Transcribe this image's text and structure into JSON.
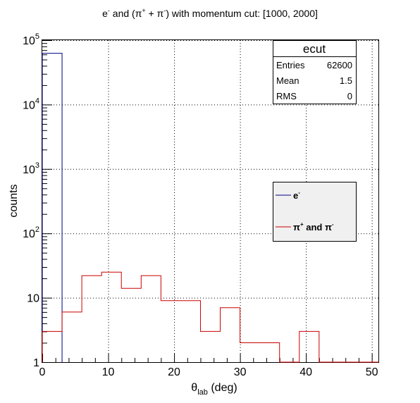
{
  "chart_data": {
    "type": "histogram",
    "title": {
      "base": "e",
      "sup1": "-",
      "mid1": " and (",
      "pi": "π",
      "sup2": "+",
      "mid2": " + ",
      "sup3": "-",
      "rest": ") with momentum cut: [1000, 2000]"
    },
    "xlabel": {
      "theta": "θ",
      "sub": "lab",
      "rest": " (deg)"
    },
    "ylabel": "counts",
    "x_range": [
      0,
      51
    ],
    "y_range": [
      1,
      100000
    ],
    "y_scale": "log",
    "grid": true,
    "x_ticks": [
      0,
      10,
      20,
      30,
      40,
      50
    ],
    "y_ticks": [
      {
        "value": 1,
        "base": "1",
        "exp": ""
      },
      {
        "value": 10,
        "base": "10",
        "exp": ""
      },
      {
        "value": 100,
        "base": "10",
        "exp": "2"
      },
      {
        "value": 1000,
        "base": "10",
        "exp": "3"
      },
      {
        "value": 10000,
        "base": "10",
        "exp": "4"
      },
      {
        "value": 100000,
        "base": "10",
        "exp": "5"
      }
    ],
    "bin_width": 3,
    "series": [
      {
        "name": "e-",
        "color": "#000080",
        "bins": [
          {
            "x": 0,
            "count": 62600
          }
        ]
      },
      {
        "name": "π+ and π-",
        "color": "#cc0000",
        "bins": [
          {
            "x": 0,
            "count": 3
          },
          {
            "x": 3,
            "count": 6
          },
          {
            "x": 6,
            "count": 22
          },
          {
            "x": 9,
            "count": 25
          },
          {
            "x": 12,
            "count": 14
          },
          {
            "x": 15,
            "count": 22
          },
          {
            "x": 18,
            "count": 9
          },
          {
            "x": 21,
            "count": 9
          },
          {
            "x": 24,
            "count": 3
          },
          {
            "x": 27,
            "count": 7
          },
          {
            "x": 30,
            "count": 2
          },
          {
            "x": 33,
            "count": 2
          },
          {
            "x": 36,
            "count": 1
          },
          {
            "x": 39,
            "count": 3
          },
          {
            "x": 42,
            "count": 1
          },
          {
            "x": 45,
            "count": 1
          },
          {
            "x": 48,
            "count": 1
          }
        ]
      }
    ],
    "legend": {
      "position": "right-middle",
      "entries": [
        {
          "base": "e",
          "sup": "-",
          "color": "#000080"
        },
        {
          "pi1": "π",
          "sup1": "+",
          "mid": " and ",
          "pi2": "π",
          "sup2": "-",
          "color": "#cc0000"
        }
      ]
    },
    "stats_box": {
      "position": "top-right",
      "title": "ecut",
      "rows": [
        {
          "label": "Entries",
          "value": "62600"
        },
        {
          "label": "Mean",
          "value": "1.5"
        },
        {
          "label": "RMS",
          "value": "0"
        }
      ]
    }
  }
}
